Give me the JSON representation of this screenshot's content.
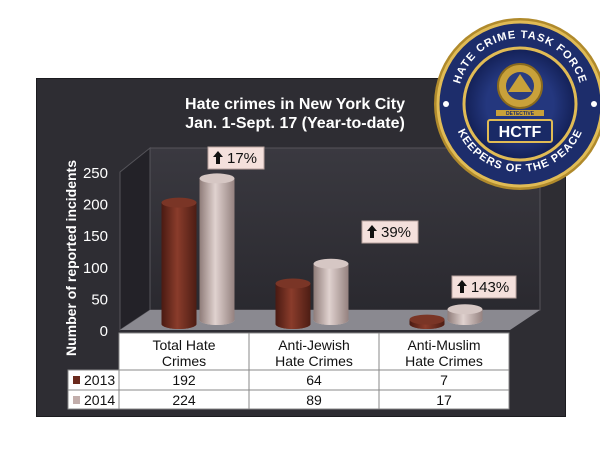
{
  "chart_data": {
    "type": "bar",
    "title": "Hate crimes in New York City",
    "subtitle": "Jan. 1-Sept. 17 (Year-to-date)",
    "ylabel": "Number of reported incidents",
    "xlabel": "",
    "ylim": [
      0,
      250
    ],
    "yticks": [
      "0",
      "50",
      "100",
      "150",
      "200",
      "250"
    ],
    "categories": [
      "Total Hate Crimes",
      "Anti-Jewish Hate Crimes",
      "Anti-Muslim Hate Crimes"
    ],
    "category_lines": [
      [
        "Total Hate",
        "Crimes"
      ],
      [
        "Anti-Jewish",
        "Hate Crimes"
      ],
      [
        "Anti-Muslim",
        "Hate Crimes"
      ]
    ],
    "series": [
      {
        "name": "2013",
        "values": [
          192,
          64,
          7
        ],
        "labels": [
          "192",
          "64",
          "7"
        ],
        "color": "#6b2a1d"
      },
      {
        "name": "2014",
        "values": [
          224,
          89,
          17
        ],
        "labels": [
          "224",
          "89",
          "17"
        ],
        "color": "#c2aeab"
      }
    ],
    "change_callouts": [
      "17%",
      "39%",
      "143%"
    ],
    "grid": false,
    "legend": "table-left"
  },
  "badge": {
    "top_text": "HATE CRIME TASK FORCE",
    "bottom_text": "KEEPERS OF THE PEACE",
    "center_text": "HCTF",
    "inner_text": "DETECTIVE"
  },
  "colors": {
    "panel": "#2e2d33",
    "table_bg": "#ffffff",
    "callout_bg": "#f4e0dc",
    "text": "#ffffff",
    "badge_navy": "#1d2d6b",
    "badge_gold": "#c9a13a"
  }
}
